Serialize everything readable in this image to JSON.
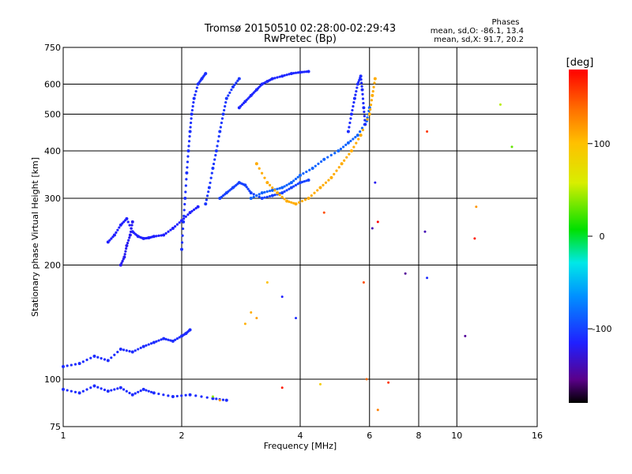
{
  "chart_data": {
    "type": "scatter",
    "title": "Tromsø 20150510 02:28:00-02:29:43",
    "subtitle": "RwPretec (Bp)",
    "xlabel": "Frequency [MHz]",
    "ylabel": "Stationary phase Virtual Height [km]",
    "x_scale": "log",
    "y_scale": "log",
    "xlim": [
      1,
      16
    ],
    "ylim": [
      75,
      750
    ],
    "x_ticks": [
      1,
      2,
      4,
      6,
      8,
      10,
      16
    ],
    "x_tick_labels": [
      "1",
      "2",
      "4",
      "6",
      "8",
      "10",
      "16"
    ],
    "y_ticks": [
      75,
      100,
      200,
      300,
      400,
      500,
      600,
      750
    ],
    "y_tick_labels": [
      "75",
      "100",
      "200",
      "300",
      "400",
      "500",
      "600",
      "750"
    ],
    "grid": true,
    "stats": {
      "heading": "Phases",
      "line_o": "mean, sd,O: -86.1, 13.4",
      "line_x": "mean, sd,X:  91.7, 20.2"
    },
    "colorbar": {
      "label": "[deg]",
      "range": [
        -180,
        180
      ],
      "ticks": [
        100,
        0,
        -100
      ],
      "tick_labels": [
        "100",
        "0",
        "-100"
      ]
    },
    "traces": [
      {
        "x": [
          1.0,
          1.1,
          1.2,
          1.3,
          1.4,
          1.5,
          1.6,
          1.7,
          1.8,
          1.9,
          2.0,
          2.05,
          2.1
        ],
        "y": [
          108,
          110,
          115,
          112,
          120,
          118,
          122,
          125,
          128,
          126,
          130,
          132,
          135
        ],
        "phase": -110
      },
      {
        "x": [
          1.3,
          1.35,
          1.4,
          1.45,
          1.5,
          1.55,
          1.6,
          1.65,
          1.7,
          1.8,
          1.9,
          2.0,
          2.1,
          2.2
        ],
        "y": [
          230,
          240,
          255,
          265,
          245,
          238,
          235,
          236,
          238,
          240,
          250,
          262,
          275,
          285
        ],
        "phase": -115
      },
      {
        "x": [
          1.4,
          1.43,
          1.45,
          1.48,
          1.5
        ],
        "y": [
          200,
          210,
          225,
          240,
          260
        ],
        "phase": -120
      },
      {
        "x": [
          2.0,
          2.02,
          2.04,
          2.06,
          2.08,
          2.1,
          2.12,
          2.15,
          2.2,
          2.25,
          2.3
        ],
        "y": [
          220,
          260,
          300,
          350,
          400,
          450,
          500,
          550,
          600,
          620,
          640
        ],
        "phase": -108
      },
      {
        "x": [
          2.3,
          2.35,
          2.4,
          2.45,
          2.5,
          2.55,
          2.6,
          2.7,
          2.8
        ],
        "y": [
          290,
          320,
          360,
          400,
          450,
          500,
          550,
          590,
          620
        ],
        "phase": -105
      },
      {
        "x": [
          2.5,
          2.6,
          2.7,
          2.8,
          2.9,
          3.0,
          3.2,
          3.4,
          3.6,
          3.8,
          4.0,
          4.2
        ],
        "y": [
          300,
          310,
          320,
          330,
          325,
          310,
          300,
          305,
          310,
          320,
          330,
          335
        ],
        "phase": -100
      },
      {
        "x": [
          3.0,
          3.2,
          3.4,
          3.6,
          3.8,
          4.0,
          4.3,
          4.6,
          5.0,
          5.3,
          5.6,
          5.9,
          6.0
        ],
        "y": [
          300,
          310,
          315,
          320,
          330,
          345,
          360,
          380,
          400,
          420,
          440,
          480,
          520
        ],
        "phase": -85
      },
      {
        "x": [
          3.1,
          3.3,
          3.5,
          3.7,
          3.9,
          4.2,
          4.5,
          4.8,
          5.1,
          5.4,
          5.7,
          6.0,
          6.1,
          6.2
        ],
        "y": [
          370,
          330,
          310,
          295,
          290,
          300,
          320,
          340,
          370,
          400,
          440,
          500,
          560,
          620
        ],
        "phase": 110
      },
      {
        "x": [
          5.3,
          5.4,
          5.5,
          5.6,
          5.7,
          5.75,
          5.8,
          5.85
        ],
        "y": [
          450,
          500,
          550,
          600,
          630,
          580,
          520,
          470
        ],
        "phase": -110
      },
      {
        "x": [
          2.8,
          2.9,
          3.0,
          3.1,
          3.2,
          3.3,
          3.4,
          3.6,
          3.8,
          4.0,
          4.2
        ],
        "y": [
          520,
          540,
          560,
          580,
          600,
          610,
          620,
          630,
          640,
          645,
          648
        ],
        "phase": -112
      },
      {
        "x": [
          1.0,
          1.1,
          1.2,
          1.3,
          1.4,
          1.5,
          1.6,
          1.7,
          1.9,
          2.1,
          2.4,
          2.6
        ],
        "y": [
          94,
          92,
          96,
          93,
          95,
          91,
          94,
          92,
          90,
          91,
          89,
          88
        ],
        "phase": -110
      }
    ],
    "scattered": [
      {
        "x": 3.0,
        "y": 150,
        "phase": 110
      },
      {
        "x": 3.1,
        "y": 145,
        "phase": 115
      },
      {
        "x": 2.9,
        "y": 140,
        "phase": 108
      },
      {
        "x": 3.3,
        "y": 180,
        "phase": 100
      },
      {
        "x": 3.6,
        "y": 165,
        "phase": -115
      },
      {
        "x": 3.9,
        "y": 145,
        "phase": -110
      },
      {
        "x": 2.5,
        "y": 88,
        "phase": 120
      },
      {
        "x": 2.4,
        "y": 90,
        "phase": 40
      },
      {
        "x": 4.5,
        "y": 97,
        "phase": 90
      },
      {
        "x": 3.6,
        "y": 95,
        "phase": 170
      },
      {
        "x": 6.3,
        "y": 83,
        "phase": 130
      },
      {
        "x": 6.7,
        "y": 98,
        "phase": 160
      },
      {
        "x": 5.8,
        "y": 180,
        "phase": 150
      },
      {
        "x": 6.3,
        "y": 260,
        "phase": 180
      },
      {
        "x": 4.6,
        "y": 275,
        "phase": 150
      },
      {
        "x": 7.4,
        "y": 190,
        "phase": -150
      },
      {
        "x": 8.4,
        "y": 185,
        "phase": -110
      },
      {
        "x": 8.3,
        "y": 245,
        "phase": -140
      },
      {
        "x": 11.1,
        "y": 235,
        "phase": 170
      },
      {
        "x": 10.5,
        "y": 130,
        "phase": -150
      },
      {
        "x": 11.2,
        "y": 285,
        "phase": 120
      },
      {
        "x": 12.9,
        "y": 530,
        "phase": 50
      },
      {
        "x": 13.8,
        "y": 410,
        "phase": 30
      },
      {
        "x": 8.4,
        "y": 450,
        "phase": 160
      },
      {
        "x": 6.2,
        "y": 330,
        "phase": -120
      },
      {
        "x": 6.1,
        "y": 250,
        "phase": -140
      },
      {
        "x": 5.9,
        "y": 100,
        "phase": 140
      }
    ]
  }
}
